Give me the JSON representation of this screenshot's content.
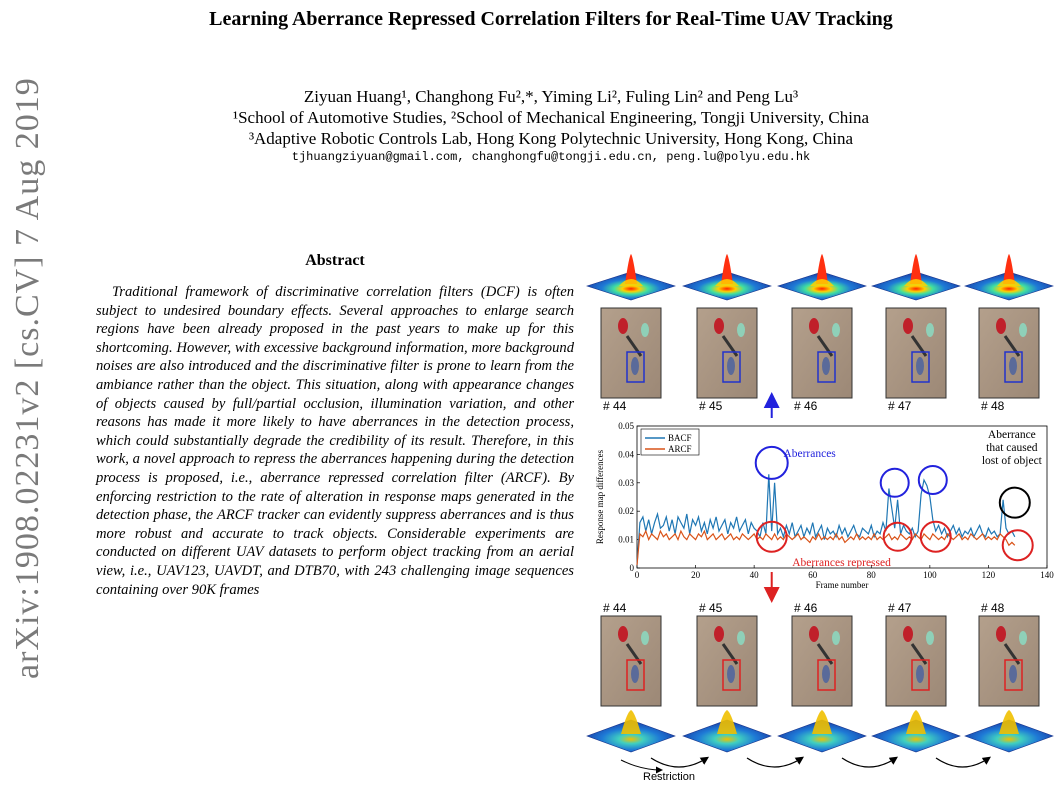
{
  "paper": {
    "title": "Learning Aberrance Repressed Correlation Filters for Real-Time UAV Tracking",
    "authors_line": "Ziyuan Huang¹, Changhong Fu²,*, Yiming Li², Fuling Lin² and Peng Lu³",
    "affil_line1": "¹School of Automotive Studies, ²School of Mechanical Engineering, Tongji University, China",
    "affil_line2": "³Adaptive Robotic Controls Lab, Hong Kong Polytechnic University, Hong Kong, China",
    "emails": "tjhuangziyuan@gmail.com, changhongfu@tongji.edu.cn, peng.lu@polyu.edu.hk",
    "arxiv_stamp": "arXiv:1908.02231v2  [cs.CV]  7 Aug 2019",
    "abstract_heading": "Abstract",
    "abstract_text": "Traditional framework of discriminative correlation filters (DCF) is often subject to undesired boundary effects. Several approaches to enlarge search regions have been already proposed in the past years to make up for this shortcoming. However, with excessive background information, more background noises are also introduced and the discriminative filter is prone to learn from the ambiance rather than the object. This situation, along with appearance changes of objects caused by full/partial occlusion, illumination variation, and other reasons has made it more likely to have aberrances in the detection process, which could substantially degrade the credibility of its result. Therefore, in this work, a novel approach to repress the aberrances happening during the detection process is proposed, i.e., aberrance repressed correlation filter (ARCF). By enforcing restriction to the rate of alteration in response maps generated in the detection phase, the ARCF tracker can evidently suppress aberrances and is thus more robust and accurate to track objects. Considerable experiments are conducted on different UAV datasets to perform object tracking from an aerial view, i.e., UAV123, UAVDT, and DTB70, with 243 challenging image sequences containing over 90K frames"
  },
  "figure": {
    "frame_labels": [
      "# 44",
      "# 45",
      "# 46",
      "# 47",
      "# 48"
    ],
    "annotations": {
      "aberrances": "Aberrances",
      "aberrances_repressed": "Aberrances repressed",
      "lost_line1": "Aberrance",
      "lost_line2": "that caused",
      "lost_line3": "lost of object",
      "restriction": "Restriction"
    },
    "colors": {
      "bacf": "#1f77b4",
      "arcf": "#d95319",
      "blue_circle": "#2222dd",
      "red_circle": "#dd2222",
      "black_circle": "#000000",
      "bbox_top": "#2233cc",
      "bbox_bottom": "#dd2222"
    }
  },
  "chart_data": {
    "type": "line",
    "xlabel": "Frame number",
    "ylabel": "Response map differences",
    "xlim": [
      0,
      140
    ],
    "ylim": [
      0,
      0.05
    ],
    "xticks": [
      0,
      20,
      40,
      60,
      80,
      100,
      120,
      140
    ],
    "yticks": [
      0,
      0.01,
      0.02,
      0.03,
      0.04,
      0.05
    ],
    "ytick_labels": [
      "0",
      "0.01",
      "0.02",
      "0.03",
      "0.04",
      "0.05"
    ],
    "legend_position": "top-left",
    "series": [
      {
        "name": "BACF",
        "values": [
          0.001,
          0.016,
          0.018,
          0.013,
          0.017,
          0.012,
          0.016,
          0.019,
          0.014,
          0.015,
          0.018,
          0.013,
          0.017,
          0.012,
          0.018,
          0.016,
          0.014,
          0.019,
          0.012,
          0.017,
          0.015,
          0.018,
          0.013,
          0.016,
          0.012,
          0.017,
          0.014,
          0.018,
          0.013,
          0.015,
          0.017,
          0.012,
          0.016,
          0.014,
          0.018,
          0.013,
          0.015,
          0.017,
          0.012,
          0.016,
          0.014,
          0.013,
          0.011,
          0.016,
          0.012,
          0.033,
          0.013,
          0.03,
          0.012,
          0.014,
          0.011,
          0.015,
          0.012,
          0.016,
          0.011,
          0.013,
          0.015,
          0.011,
          0.014,
          0.012,
          0.016,
          0.011,
          0.013,
          0.015,
          0.01,
          0.014,
          0.012,
          0.013,
          0.011,
          0.015,
          0.012,
          0.014,
          0.011,
          0.013,
          0.015,
          0.012,
          0.011,
          0.014,
          0.013,
          0.012,
          0.015,
          0.011,
          0.013,
          0.012,
          0.016,
          0.013,
          0.028,
          0.021,
          0.014,
          0.024,
          0.012,
          0.015,
          0.013,
          0.012,
          0.014,
          0.011,
          0.013,
          0.026,
          0.031,
          0.029,
          0.025,
          0.017,
          0.013,
          0.015,
          0.012,
          0.014,
          0.011,
          0.013,
          0.015,
          0.012,
          0.014,
          0.011,
          0.013,
          0.012,
          0.014,
          0.011,
          0.013,
          0.015,
          0.012,
          0.011,
          0.014,
          0.012,
          0.013,
          0.011,
          0.012,
          0.024,
          0.014,
          0.012,
          0.013,
          0.011
        ]
      },
      {
        "name": "ARCF",
        "values": [
          0.001,
          0.012,
          0.011,
          0.013,
          0.01,
          0.012,
          0.011,
          0.01,
          0.013,
          0.011,
          0.012,
          0.01,
          0.011,
          0.012,
          0.01,
          0.013,
          0.011,
          0.01,
          0.012,
          0.011,
          0.01,
          0.012,
          0.011,
          0.013,
          0.01,
          0.011,
          0.012,
          0.01,
          0.011,
          0.012,
          0.01,
          0.011,
          0.012,
          0.01,
          0.011,
          0.01,
          0.012,
          0.011,
          0.01,
          0.011,
          0.012,
          0.01,
          0.011,
          0.01,
          0.012,
          0.011,
          0.01,
          0.012,
          0.01,
          0.011,
          0.01,
          0.012,
          0.011,
          0.01,
          0.011,
          0.012,
          0.01,
          0.011,
          0.01,
          0.009,
          0.011,
          0.01,
          0.012,
          0.01,
          0.011,
          0.01,
          0.011,
          0.01,
          0.012,
          0.01,
          0.011,
          0.009,
          0.01,
          0.011,
          0.01,
          0.012,
          0.01,
          0.011,
          0.01,
          0.011,
          0.01,
          0.012,
          0.01,
          0.011,
          0.01,
          0.011,
          0.012,
          0.01,
          0.011,
          0.01,
          0.012,
          0.011,
          0.01,
          0.011,
          0.01,
          0.012,
          0.011,
          0.01,
          0.012,
          0.011,
          0.01,
          0.012,
          0.011,
          0.01,
          0.011,
          0.01,
          0.012,
          0.011,
          0.01,
          0.011,
          0.012,
          0.01,
          0.011,
          0.01,
          0.012,
          0.011,
          0.01,
          0.011,
          0.012,
          0.01,
          0.011,
          0.01,
          0.011,
          0.01,
          0.012,
          0.011,
          0.01,
          0.008,
          0.009,
          0.008
        ]
      }
    ]
  }
}
